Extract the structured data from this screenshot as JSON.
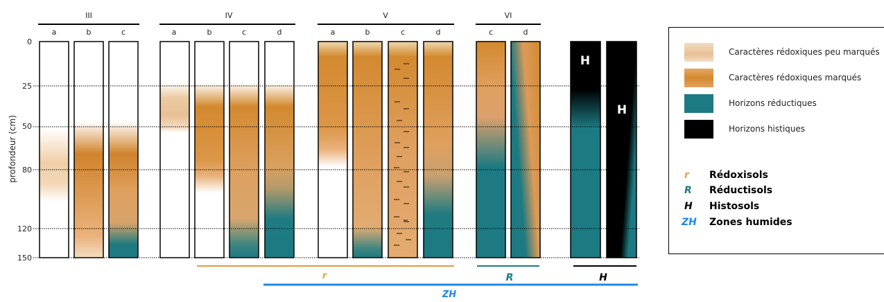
{
  "y_axis": {
    "label": "profondeur (cm)",
    "ticks": [
      "0",
      "25",
      "50",
      "80",
      "120",
      "150"
    ]
  },
  "groups": [
    {
      "name": "III",
      "columns": [
        "a",
        "b",
        "c"
      ]
    },
    {
      "name": "IV",
      "columns": [
        "a",
        "b",
        "c",
        "d"
      ]
    },
    {
      "name": "V",
      "columns": [
        "a",
        "b",
        "c",
        "d"
      ]
    },
    {
      "name": "VI",
      "columns": [
        "c",
        "d"
      ]
    }
  ],
  "histic_marks": [
    "H",
    "H"
  ],
  "classes": {
    "r": {
      "symbol": "r",
      "color": "#e8a33d"
    },
    "R": {
      "symbol": "R",
      "color": "#1d7a82"
    },
    "H": {
      "symbol": "H",
      "color": "#000000"
    },
    "ZH": {
      "symbol": "ZH",
      "color": "#1e88e5"
    }
  },
  "legend": {
    "items": [
      {
        "label": "Caractères rédoxiques peu marqués",
        "color": "#ecc79c"
      },
      {
        "label": "Caractères rédoxiques marqués",
        "color": "#d58a33"
      },
      {
        "label": "Horizons réductiques",
        "color": "#1d7a82"
      },
      {
        "label": "Horizons histiques",
        "color": "#000000"
      }
    ],
    "classes": [
      {
        "symbol": "r",
        "label": "Rédoxisols",
        "color": "#e8a33d"
      },
      {
        "symbol": "R",
        "label": "Réductisols",
        "color": "#1d7a82"
      },
      {
        "symbol": "H",
        "label": "Histosols",
        "color": "#000000"
      },
      {
        "symbol": "ZH",
        "label": "Zones humides",
        "color": "#1e88e5"
      }
    ]
  }
}
